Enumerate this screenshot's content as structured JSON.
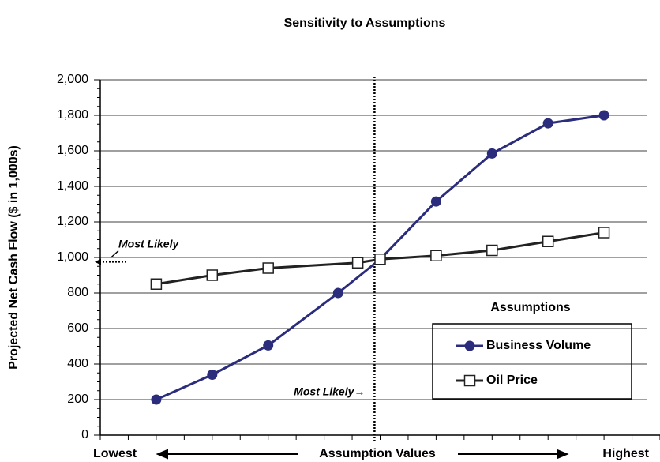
{
  "chart_data": {
    "type": "line",
    "title": "Sensitivity to Assumptions",
    "y_label": "Projected Net Cash Flow ($ in 1,000s)",
    "x_labels": {
      "left": "Lowest",
      "center": "Assumption Values",
      "right": "Highest"
    },
    "legend_title": "Assumptions",
    "annotations": {
      "y": "Most Likely",
      "x": "Most Likely→"
    },
    "reference_lines": {
      "x": 4.9,
      "y": 975
    },
    "xlim": [
      0,
      10
    ],
    "xticks": [
      0,
      0.5,
      1,
      1.5,
      2,
      2.5,
      3,
      3.5,
      4,
      4.5,
      5,
      5.5,
      6,
      6.5,
      7,
      7.5,
      8,
      8.5,
      9,
      9.5,
      10
    ],
    "ylim": [
      0,
      2000
    ],
    "yticks": [
      0,
      200,
      400,
      600,
      800,
      {
        "value": 1000,
        "label": "1,000"
      },
      {
        "value": 1200,
        "label": "1,200"
      },
      {
        "value": 1400,
        "label": "1,400"
      },
      {
        "value": 1600,
        "label": "1,600"
      },
      {
        "value": 1800,
        "label": "1,800"
      },
      {
        "value": 2000,
        "label": "2,000"
      }
    ],
    "grid": true,
    "series": [
      {
        "name": "Business Volume",
        "color": "#2b2d7c",
        "marker": "circle",
        "x": [
          1,
          2,
          3,
          4.25,
          5,
          6,
          7,
          8,
          9
        ],
        "values": [
          200,
          340,
          505,
          800,
          990,
          1315,
          1585,
          1755,
          1800
        ]
      },
      {
        "name": "Oil Price",
        "color": "#222222",
        "marker": "square",
        "x": [
          1,
          2,
          3,
          4.6,
          5,
          6,
          7,
          8,
          9
        ],
        "values": [
          850,
          900,
          940,
          970,
          990,
          1010,
          1040,
          1090,
          1140
        ]
      }
    ]
  }
}
